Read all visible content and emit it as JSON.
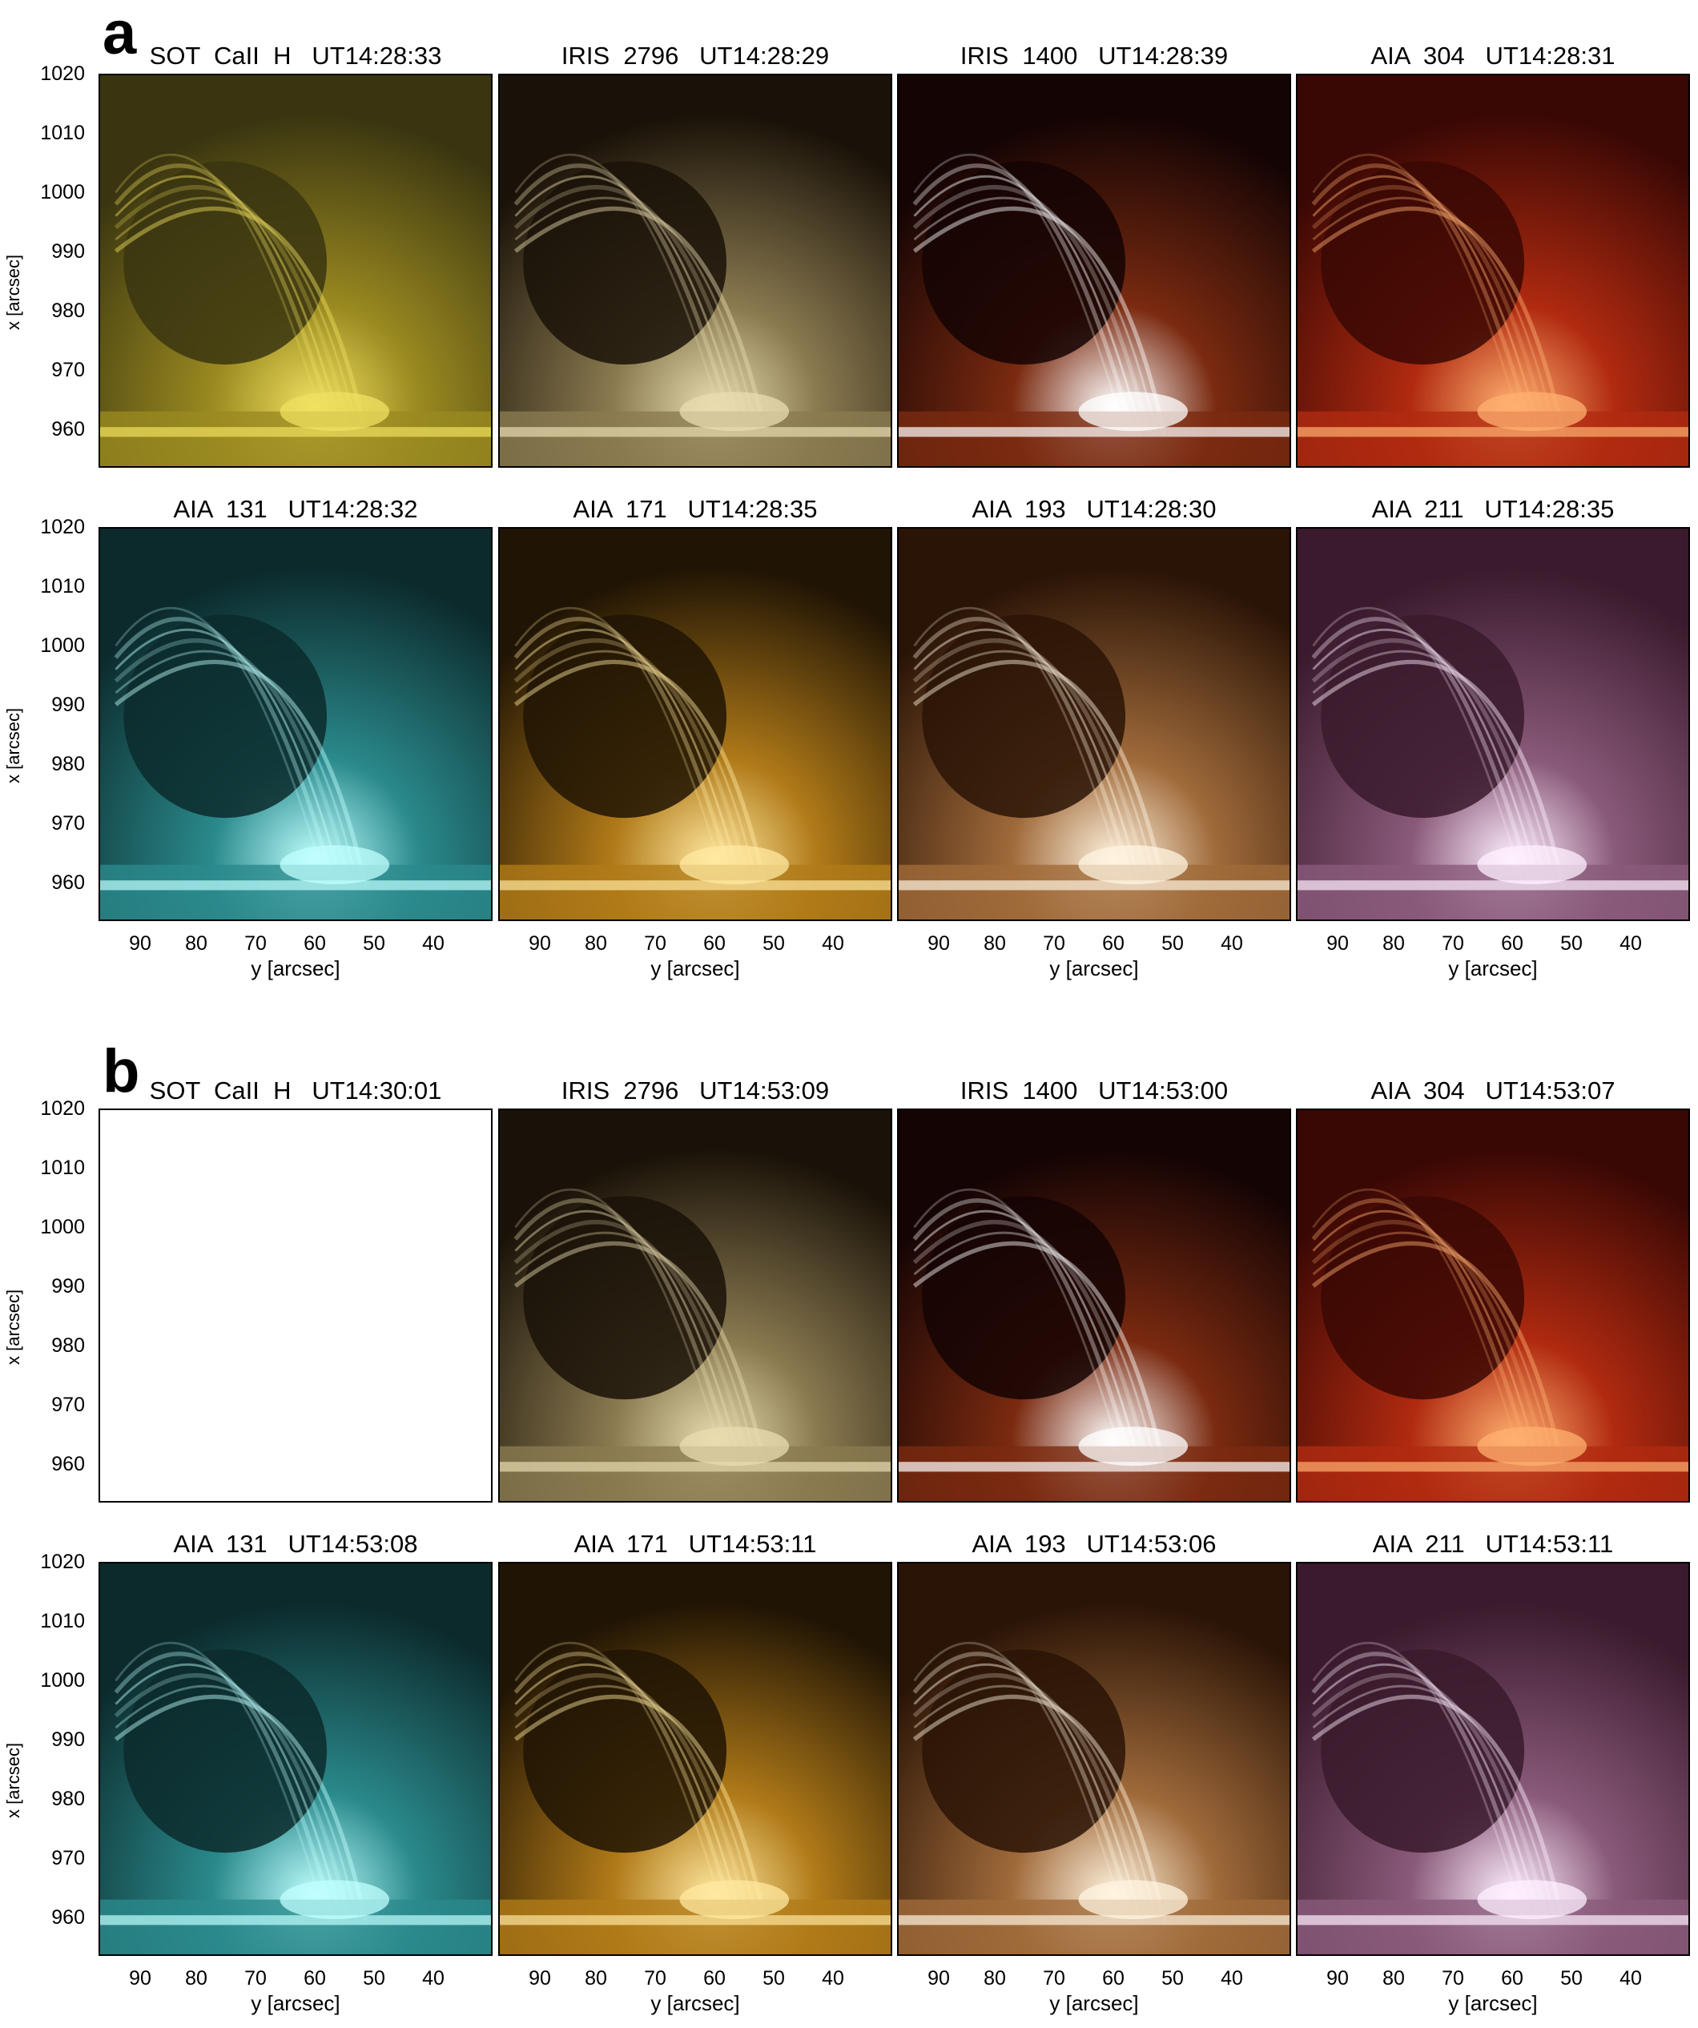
{
  "sections": [
    {
      "label": "a",
      "rows": [
        {
          "panels": [
            {
              "title": "SOT  CaII  H   UT14:28:33",
              "palette": "sot"
            },
            {
              "title": "IRIS  2796   UT14:28:29",
              "palette": "iris2796"
            },
            {
              "title": "IRIS  1400   UT14:28:39",
              "palette": "iris1400"
            },
            {
              "title": "AIA  304   UT14:28:31",
              "palette": "aia304"
            }
          ]
        },
        {
          "panels": [
            {
              "title": "AIA  131   UT14:28:32",
              "palette": "aia131"
            },
            {
              "title": "AIA  171   UT14:28:35",
              "palette": "aia171"
            },
            {
              "title": "AIA  193   UT14:28:30",
              "palette": "aia193"
            },
            {
              "title": "AIA  211   UT14:28:35",
              "palette": "aia211"
            }
          ]
        }
      ]
    },
    {
      "label": "b",
      "rows": [
        {
          "panels": [
            {
              "title": "SOT  CaII  H   UT14:30:01",
              "palette": "blank"
            },
            {
              "title": "IRIS  2796   UT14:53:09",
              "palette": "iris2796"
            },
            {
              "title": "IRIS  1400   UT14:53:00",
              "palette": "iris1400"
            },
            {
              "title": "AIA  304   UT14:53:07",
              "palette": "aia304"
            }
          ]
        },
        {
          "panels": [
            {
              "title": "AIA  131   UT14:53:08",
              "palette": "aia131"
            },
            {
              "title": "AIA  171   UT14:53:11",
              "palette": "aia171"
            },
            {
              "title": "AIA  193   UT14:53:06",
              "palette": "aia193"
            },
            {
              "title": "AIA  211   UT14:53:11",
              "palette": "aia211"
            }
          ]
        }
      ]
    }
  ],
  "axes": {
    "xlabel": "x [arcsec]",
    "ylabel": "y [arcsec]",
    "x_ticks": [
      "1020",
      "1010",
      "1000",
      "990",
      "980",
      "970",
      "960"
    ],
    "y_ticks": [
      "90",
      "80",
      "70",
      "60",
      "50",
      "40"
    ]
  },
  "palettes": {
    "sot": {
      "dark": "#3a3510",
      "mid": "#9a8a20",
      "bright": "#f0e060"
    },
    "iris2796": {
      "dark": "#1a1208",
      "mid": "#8a7a50",
      "bright": "#e8dcb0"
    },
    "iris1400": {
      "dark": "#140404",
      "mid": "#7a2a10",
      "bright": "#ffffff"
    },
    "aia304": {
      "dark": "#3a0804",
      "mid": "#b02a10",
      "bright": "#ffb070"
    },
    "aia131": {
      "dark": "#0c2a2c",
      "mid": "#2a8a8c",
      "bright": "#c0ffff"
    },
    "aia171": {
      "dark": "#201404",
      "mid": "#b07a18",
      "bright": "#ffe8a0"
    },
    "aia193": {
      "dark": "#2a1406",
      "mid": "#a06a3a",
      "bright": "#fff4e0"
    },
    "aia211": {
      "dark": "#3a1a2c",
      "mid": "#8a5a7a",
      "bright": "#fff0ff"
    },
    "blank": {
      "dark": "#ffffff",
      "mid": "#ffffff",
      "bright": "#ffffff"
    }
  }
}
